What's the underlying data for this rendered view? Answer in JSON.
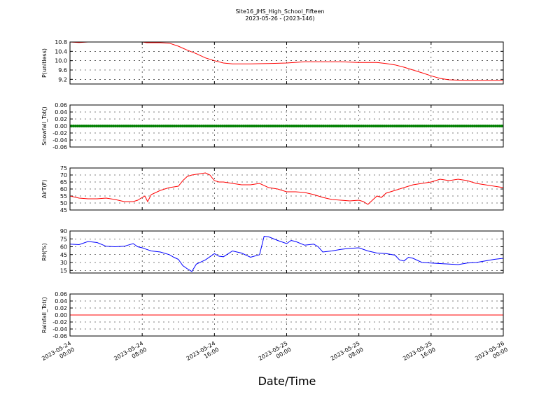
{
  "chart_data": {
    "type": "line",
    "title": "Site16_JHS_High_School_Fifteen",
    "subtitle": "2023-05-26 - (2023-146)",
    "xlabel": "Date/Time",
    "x_ticks": [
      {
        "l1": "2023-05-24",
        "l2": "00:00"
      },
      {
        "l1": "2023-05-24",
        "l2": "08:00"
      },
      {
        "l1": "2023-05-24",
        "l2": "16:00"
      },
      {
        "l1": "2023-05-25",
        "l2": "00:00"
      },
      {
        "l1": "2023-05-25",
        "l2": "08:00"
      },
      {
        "l1": "2023-05-25",
        "l2": "16:00"
      },
      {
        "l1": "2023-05-26",
        "l2": "00:00"
      }
    ],
    "xlim": [
      0,
      48
    ],
    "panels": [
      {
        "ylabel": "P(unitless)",
        "ylim": [
          9.0,
          10.8
        ],
        "yticks": [
          9.2,
          9.6,
          10.0,
          10.4,
          10.8
        ],
        "tick_labels": [
          "9.2",
          "9.6",
          "10.0",
          "10.4",
          "10.8"
        ],
        "color": "#ff0000",
        "markers": false,
        "x": [
          0,
          1,
          2,
          4,
          6,
          8,
          8.5,
          10,
          11,
          12,
          13,
          14,
          15,
          16,
          17,
          18,
          20,
          22,
          24,
          26,
          28,
          30,
          32,
          34,
          35,
          36,
          37,
          38,
          39,
          40,
          41,
          42,
          44,
          46,
          48
        ],
        "y": [
          10.8,
          10.78,
          10.8,
          10.8,
          10.8,
          10.8,
          10.77,
          10.77,
          10.75,
          10.62,
          10.45,
          10.3,
          10.12,
          10.0,
          9.9,
          9.86,
          9.86,
          9.88,
          9.9,
          9.95,
          9.95,
          9.95,
          9.92,
          9.92,
          9.88,
          9.82,
          9.72,
          9.6,
          9.48,
          9.35,
          9.24,
          9.18,
          9.15,
          9.15,
          9.15
        ]
      },
      {
        "ylabel": "Snowfall_Tot()",
        "ylim": [
          -0.06,
          0.06
        ],
        "yticks": [
          -0.06,
          -0.04,
          -0.02,
          0.0,
          0.02,
          0.04,
          0.06
        ],
        "tick_labels": [
          "-0.06",
          "-0.04",
          "-0.02",
          "0.00",
          "0.02",
          "0.04",
          "0.06"
        ],
        "color": "#008000",
        "markers": true,
        "x": [
          0,
          48
        ],
        "y": [
          0,
          0
        ]
      },
      {
        "ylabel": "AirT(F)",
        "ylim": [
          45,
          75
        ],
        "yticks": [
          45,
          50,
          55,
          60,
          65,
          70,
          75
        ],
        "tick_labels": [
          "45",
          "50",
          "55",
          "60",
          "65",
          "70",
          "75"
        ],
        "color": "#ff0000",
        "markers": false,
        "x": [
          0,
          1,
          2,
          3,
          4,
          5,
          6,
          7,
          7.5,
          8,
          8.3,
          8.6,
          9,
          10,
          11,
          12,
          12.5,
          13,
          13.5,
          14,
          15,
          15.5,
          16,
          16.5,
          17,
          18,
          19,
          20,
          21,
          22,
          23,
          24,
          25,
          26,
          27,
          28,
          29,
          30,
          31,
          32,
          32.5,
          33,
          33.5,
          34,
          34.5,
          35,
          36,
          37,
          38,
          39,
          40,
          40.5,
          41,
          42,
          43,
          44,
          45,
          46,
          47,
          48
        ],
        "y": [
          55,
          53.5,
          53,
          53,
          53.5,
          52.5,
          51,
          51,
          52,
          54,
          55,
          51,
          56,
          59,
          61,
          62,
          66,
          69,
          70,
          70.5,
          71.5,
          70,
          66,
          65,
          65,
          64,
          63,
          63,
          64,
          61,
          60,
          58,
          58,
          57.5,
          56,
          54,
          52.5,
          52,
          51.5,
          52,
          51,
          49,
          52,
          55,
          54,
          57,
          59,
          61,
          63,
          64,
          65,
          66,
          67,
          66,
          67,
          66,
          64,
          63,
          62,
          61
        ]
      },
      {
        "ylabel": "RH(%)",
        "ylim": [
          10,
          90
        ],
        "yticks": [
          15,
          30,
          45,
          60,
          75,
          90
        ],
        "tick_labels": [
          "15",
          "30",
          "45",
          "60",
          "75",
          "90"
        ],
        "color": "#0000ff",
        "markers": false,
        "x": [
          0,
          1,
          2,
          3,
          4,
          5,
          6,
          7,
          7.5,
          8,
          8.5,
          9,
          10,
          11,
          11.5,
          12,
          12.5,
          13,
          13.5,
          14,
          15,
          16,
          16.5,
          17,
          18,
          19,
          20,
          21,
          21.5,
          22,
          23,
          24,
          24.5,
          25,
          26,
          27,
          27.5,
          28,
          29,
          30,
          31,
          32,
          33,
          34,
          35,
          36,
          36.5,
          37,
          37.5,
          38,
          39,
          40,
          41,
          42,
          43,
          44,
          45,
          46,
          47,
          48
        ],
        "y": [
          65,
          64,
          70,
          68,
          61,
          60,
          61,
          66,
          60,
          58,
          55,
          52,
          50,
          45,
          40,
          36,
          24,
          18,
          13,
          27,
          35,
          47,
          42,
          41,
          52,
          48,
          40,
          45,
          80,
          79,
          72,
          66,
          72,
          70,
          63,
          65,
          60,
          50,
          52,
          55,
          57,
          58,
          52,
          48,
          47,
          44,
          35,
          33,
          40,
          38,
          30,
          29,
          28,
          27,
          26,
          29,
          30,
          33,
          36,
          38
        ]
      },
      {
        "ylabel": "Rainfall_Tot()",
        "ylim": [
          -0.06,
          0.06
        ],
        "yticks": [
          -0.06,
          -0.04,
          -0.02,
          0.0,
          0.02,
          0.04,
          0.06
        ],
        "tick_labels": [
          "-0.06",
          "-0.04",
          "-0.02",
          "0.00",
          "0.02",
          "0.04",
          "0.06"
        ],
        "color": "#ff0000",
        "markers": false,
        "x": [
          0,
          48
        ],
        "y": [
          0,
          0
        ]
      }
    ]
  }
}
